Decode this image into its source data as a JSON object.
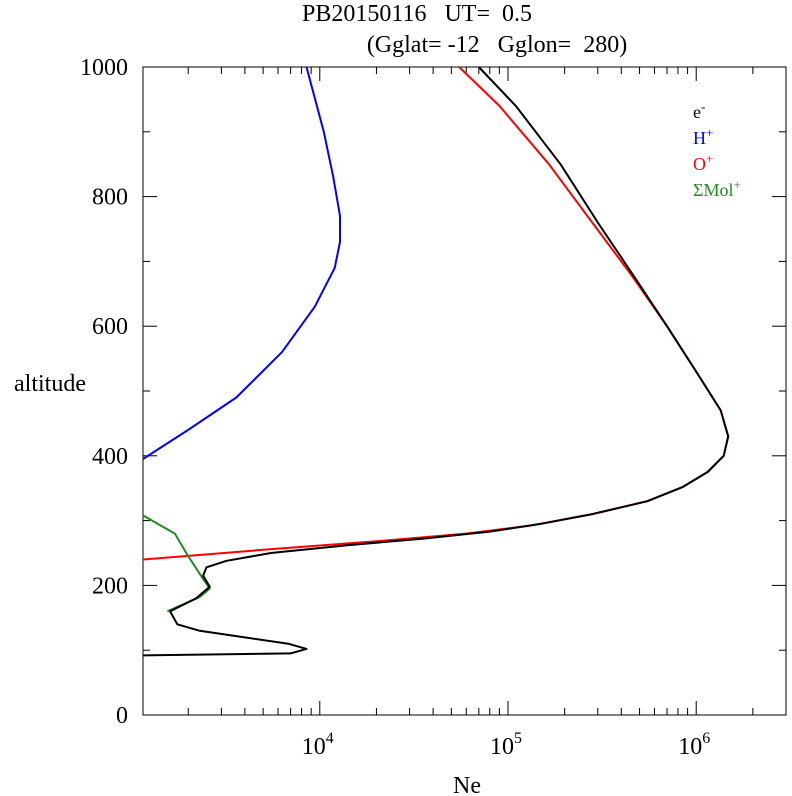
{
  "chart_data": {
    "type": "line",
    "title": "PB20150116   UT=  0.5",
    "subtitle": "(Gglat= -12   Gglon=  280)",
    "xlabel": "Ne",
    "ylabel": "altitude",
    "xscale": "log",
    "xlim": [
      1150,
      3000000
    ],
    "ylim": [
      0,
      1000
    ],
    "yticks": [
      0,
      200,
      400,
      600,
      800,
      1000
    ],
    "ytick_labels": [
      "0",
      "200",
      "400",
      "600",
      "800",
      "1000"
    ],
    "xticks": [
      {
        "base": "10",
        "exp": "4",
        "value": 10000
      },
      {
        "base": "10",
        "exp": "5",
        "value": 100000
      },
      {
        "base": "10",
        "exp": "6",
        "value": 1000000
      }
    ],
    "legend_position": "top-right",
    "series": [
      {
        "name": "H+",
        "label": "H",
        "sup": "+",
        "color": "#0000ff",
        "points": [
          [
            1150,
            395
          ],
          [
            2000,
            440
          ],
          [
            3600,
            490
          ],
          [
            6300,
            560
          ],
          [
            9400,
            630
          ],
          [
            12000,
            690
          ],
          [
            12800,
            730
          ],
          [
            12800,
            770
          ],
          [
            11800,
            830
          ],
          [
            10500,
            900
          ],
          [
            8500,
            1000
          ]
        ]
      },
      {
        "name": "O+",
        "label": "O",
        "sup": "+",
        "color": "#ff0000",
        "points": [
          [
            1150,
            240
          ],
          [
            5000,
            255
          ],
          [
            20000,
            268
          ],
          [
            60000,
            280
          ],
          [
            130000,
            292
          ],
          [
            280000,
            310
          ],
          [
            550000,
            330
          ],
          [
            850000,
            352
          ],
          [
            1150000,
            375
          ],
          [
            1400000,
            400
          ],
          [
            1480000,
            430
          ],
          [
            1350000,
            470
          ],
          [
            1000000,
            530
          ],
          [
            700000,
            600
          ],
          [
            450000,
            680
          ],
          [
            280000,
            760
          ],
          [
            165000,
            850
          ],
          [
            90000,
            940
          ],
          [
            55000,
            1000
          ]
        ]
      },
      {
        "name": "ΣMol+",
        "label": "ΣMol",
        "sup": "+",
        "color": "#228b22",
        "points": [
          [
            1150,
            308
          ],
          [
            1700,
            280
          ],
          [
            2000,
            245
          ],
          [
            2400,
            210
          ],
          [
            2600,
            195
          ],
          [
            2300,
            182
          ],
          [
            1550,
            160
          ]
        ]
      },
      {
        "name": "e-",
        "label": "e",
        "sup": "-",
        "color": "#000000",
        "points": [
          [
            1150,
            92
          ],
          [
            7000,
            95
          ],
          [
            8500,
            102
          ],
          [
            6800,
            110
          ],
          [
            2300,
            130
          ],
          [
            1750,
            140
          ],
          [
            1600,
            160
          ],
          [
            2200,
            180
          ],
          [
            2600,
            198
          ],
          [
            2400,
            215
          ],
          [
            2500,
            228
          ],
          [
            3200,
            238
          ],
          [
            5500,
            250
          ],
          [
            14000,
            262
          ],
          [
            35000,
            272
          ],
          [
            80000,
            283
          ],
          [
            150000,
            295
          ],
          [
            280000,
            310
          ],
          [
            550000,
            330
          ],
          [
            850000,
            352
          ],
          [
            1150000,
            375
          ],
          [
            1400000,
            400
          ],
          [
            1480000,
            430
          ],
          [
            1350000,
            470
          ],
          [
            1000000,
            530
          ],
          [
            700000,
            600
          ],
          [
            460000,
            680
          ],
          [
            300000,
            760
          ],
          [
            190000,
            850
          ],
          [
            110000,
            940
          ],
          [
            70000,
            1000
          ]
        ]
      }
    ]
  }
}
